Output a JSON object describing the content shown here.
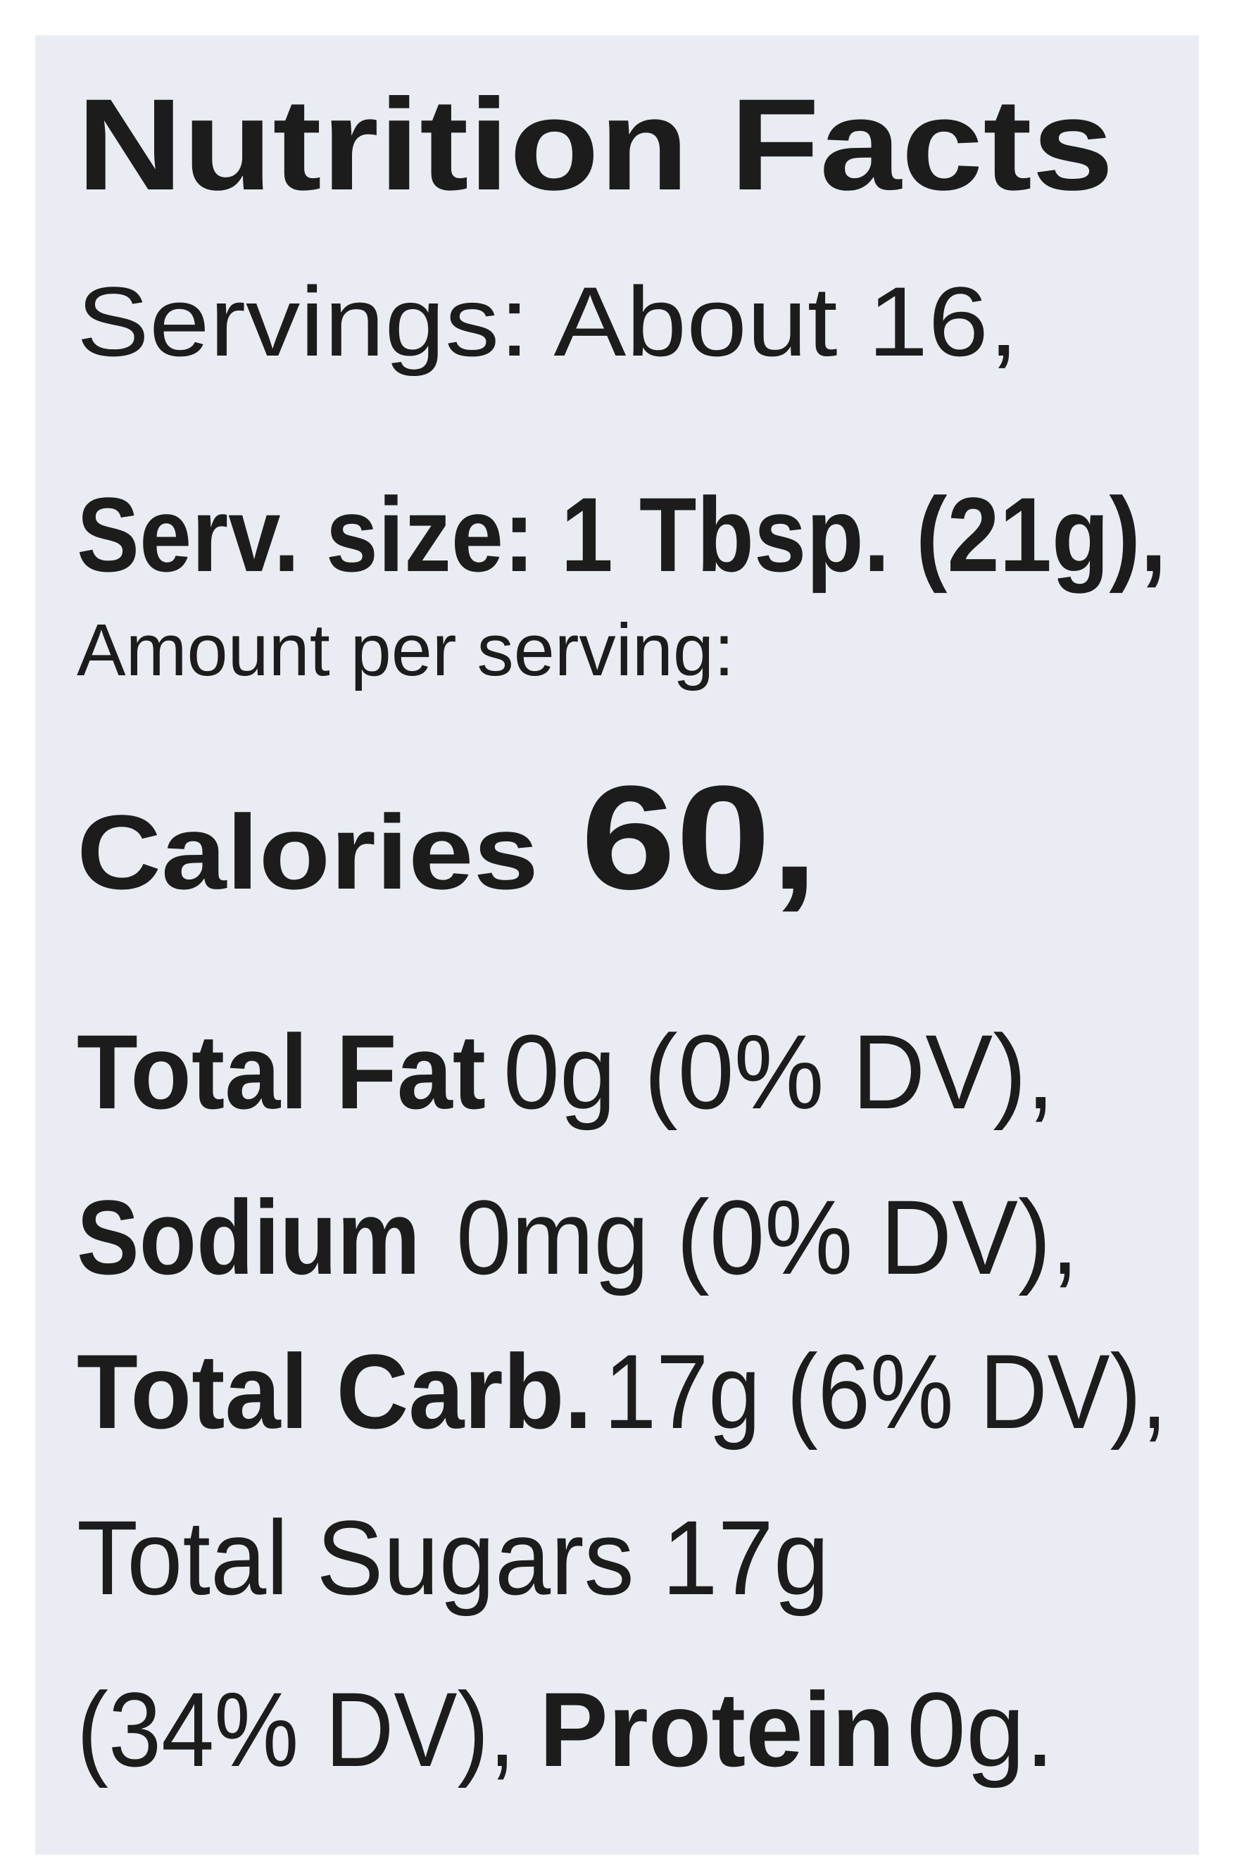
{
  "title": "Nutrition Facts",
  "servings": "Servings: About 16,",
  "serving_size": "Serv. size: 1 Tbsp. (21g),",
  "amount_label": "Amount per serving:",
  "calories": {
    "label": "Calories",
    "value": "60,"
  },
  "nutrients": [
    {
      "name": "Total Fat",
      "amount": "0g (0% DV),"
    },
    {
      "name": "Sodium",
      "amount": "0mg (0% DV),"
    },
    {
      "name": "Total Carb.",
      "amount": "17g (6% DV),"
    }
  ],
  "sugars": "Total Sugars 17g",
  "last_line": {
    "sugars_dv": "(34% DV),",
    "protein_name": "Protein",
    "protein_amount": "0g."
  }
}
